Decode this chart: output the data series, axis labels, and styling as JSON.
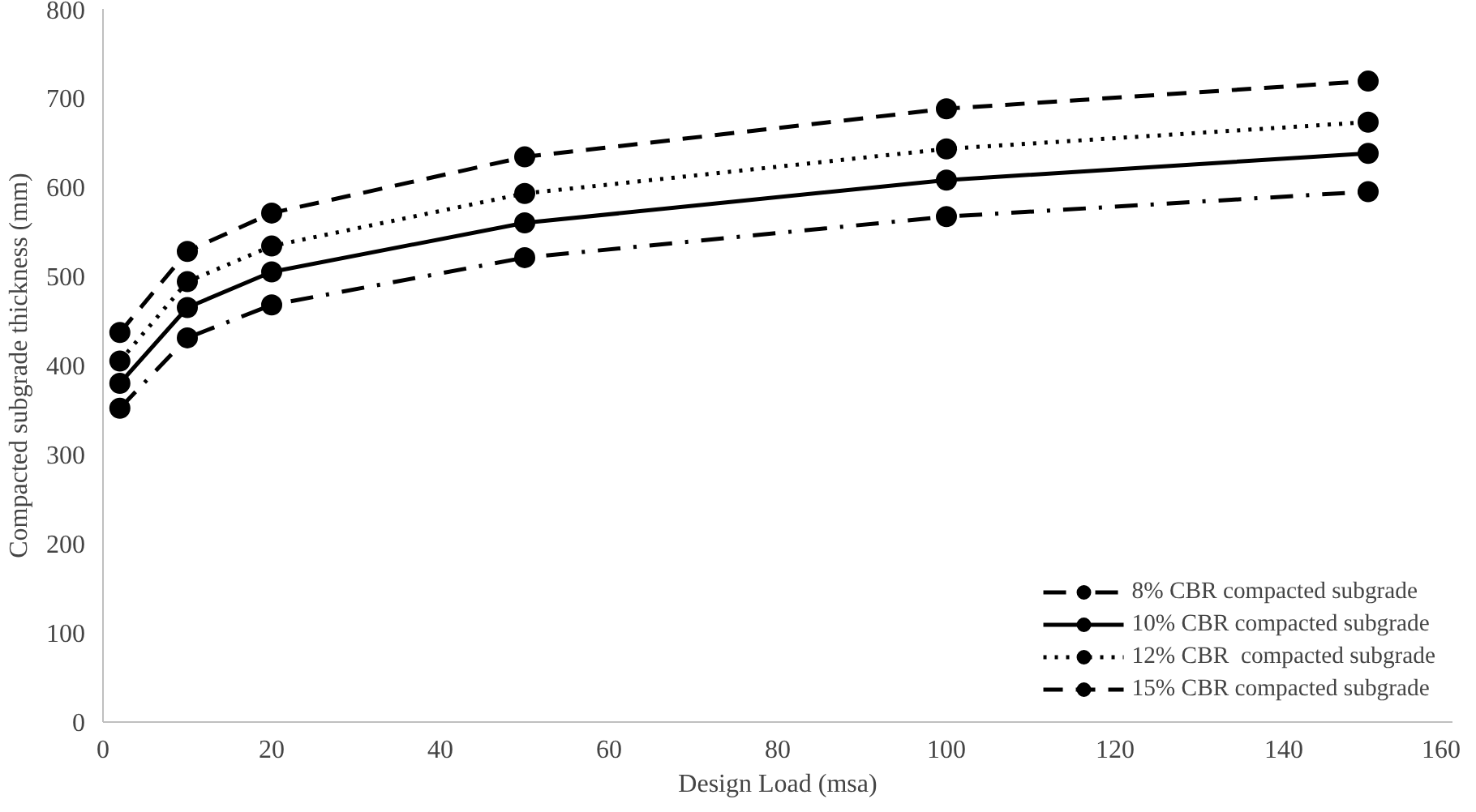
{
  "chart_data": {
    "type": "line",
    "xlabel": "Design Load (msa)",
    "ylabel": "Compacted subgrade thickness (mm)",
    "x": [
      2,
      10,
      20,
      50,
      100,
      150
    ],
    "series": [
      {
        "name": "8% CBR compacted subgrade",
        "color": "#000000",
        "line_style": "dashdot",
        "values": [
          352,
          431,
          468,
          521,
          567,
          595
        ]
      },
      {
        "name": "10% CBR compacted subgrade",
        "color": "#000000",
        "line_style": "solid",
        "values": [
          380,
          465,
          505,
          560,
          608,
          638
        ]
      },
      {
        "name": "12% CBR  compacted subgrade",
        "color": "#000000",
        "line_style": "dotted",
        "values": [
          405,
          494,
          534,
          593,
          643,
          673
        ]
      },
      {
        "name": "15% CBR compacted subgrade",
        "color": "#000000",
        "line_style": "dashed",
        "values": [
          437,
          528,
          571,
          634,
          688,
          719
        ]
      }
    ],
    "marker": "circle",
    "grid": false,
    "legend": "bottom right",
    "xlim": [
      0,
      160
    ],
    "xticks": [
      0,
      20,
      40,
      60,
      80,
      100,
      120,
      140,
      160
    ],
    "ylim": [
      0,
      800
    ],
    "yticks": [
      0,
      100,
      200,
      300,
      400,
      500,
      600,
      700,
      800
    ]
  }
}
